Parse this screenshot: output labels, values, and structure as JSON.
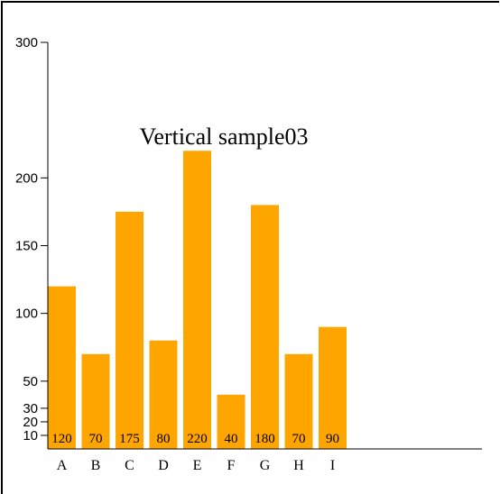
{
  "chart_data": {
    "type": "bar",
    "title": "Vertical sample03",
    "categories": [
      "A",
      "B",
      "C",
      "D",
      "E",
      "F",
      "G",
      "H",
      "I"
    ],
    "values": [
      120,
      70,
      175,
      80,
      220,
      40,
      180,
      70,
      90
    ],
    "yticks": [
      10,
      20,
      30,
      50,
      100,
      150,
      200,
      300
    ],
    "ylim": [
      0,
      300
    ],
    "xlabel": "",
    "ylabel": "",
    "grid": false,
    "bar_color": "#FFA500",
    "axis_color": "#000000"
  }
}
